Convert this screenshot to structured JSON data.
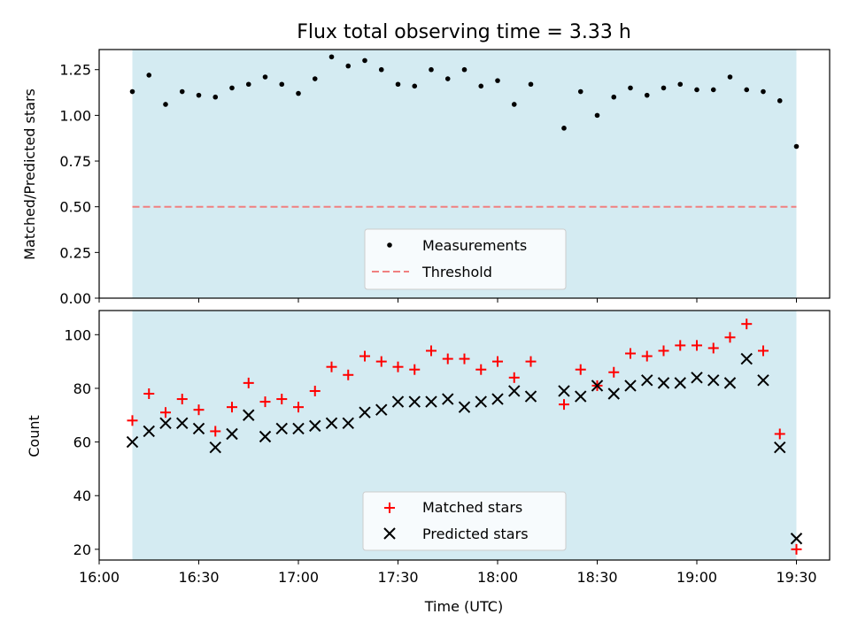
{
  "chart_data": [
    {
      "type": "scatter",
      "title": "Flux total observing time = 3.33 h",
      "ylabel": "Matched/Predicted stars",
      "xlabel": "",
      "ylim": [
        0,
        1.36
      ],
      "xlim": [
        "16:00",
        "19:40"
      ],
      "yticks": [
        "0.00",
        "0.25",
        "0.50",
        "0.75",
        "1.00",
        "1.25"
      ],
      "shaded_range": [
        "16:10",
        "19:30"
      ],
      "threshold": 0.5,
      "legend": [
        "Measurements",
        "Threshold"
      ],
      "series": [
        {
          "name": "Measurements",
          "x": [
            "16:10",
            "16:15",
            "16:20",
            "16:25",
            "16:30",
            "16:35",
            "16:40",
            "16:45",
            "16:50",
            "16:55",
            "17:00",
            "17:05",
            "17:10",
            "17:15",
            "17:20",
            "17:25",
            "17:30",
            "17:35",
            "17:40",
            "17:45",
            "17:50",
            "17:55",
            "18:00",
            "18:05",
            "18:10",
            "18:20",
            "18:25",
            "18:30",
            "18:35",
            "18:40",
            "18:45",
            "18:50",
            "18:55",
            "19:00",
            "19:05",
            "19:10",
            "19:15",
            "19:20",
            "19:25",
            "19:30"
          ],
          "values": [
            1.13,
            1.22,
            1.06,
            1.13,
            1.11,
            1.1,
            1.15,
            1.17,
            1.21,
            1.17,
            1.12,
            1.2,
            1.32,
            1.27,
            1.3,
            1.25,
            1.17,
            1.16,
            1.25,
            1.2,
            1.25,
            1.16,
            1.19,
            1.06,
            1.17,
            0.93,
            1.13,
            1.0,
            1.1,
            1.15,
            1.11,
            1.15,
            1.17,
            1.14,
            1.14,
            1.21,
            1.14,
            1.13,
            1.08,
            0.83
          ]
        }
      ]
    },
    {
      "type": "scatter",
      "title": "",
      "ylabel": "Count",
      "xlabel": "Time (UTC)",
      "ylim": [
        16,
        109
      ],
      "yticks": [
        "20",
        "40",
        "60",
        "80",
        "100"
      ],
      "xticks": [
        "16:00",
        "16:30",
        "17:00",
        "17:30",
        "18:00",
        "18:30",
        "19:00",
        "19:30"
      ],
      "legend": [
        "Matched stars",
        "Predicted stars"
      ],
      "series": [
        {
          "name": "Matched stars",
          "x": [
            "16:10",
            "16:15",
            "16:20",
            "16:25",
            "16:30",
            "16:35",
            "16:40",
            "16:45",
            "16:50",
            "16:55",
            "17:00",
            "17:05",
            "17:10",
            "17:15",
            "17:20",
            "17:25",
            "17:30",
            "17:35",
            "17:40",
            "17:45",
            "17:50",
            "17:55",
            "18:00",
            "18:05",
            "18:10",
            "18:20",
            "18:25",
            "18:30",
            "18:35",
            "18:40",
            "18:45",
            "18:50",
            "18:55",
            "19:00",
            "19:05",
            "19:10",
            "19:15",
            "19:20",
            "19:25",
            "19:30"
          ],
          "values": [
            68,
            78,
            71,
            76,
            72,
            64,
            73,
            82,
            75,
            76,
            73,
            79,
            88,
            85,
            92,
            90,
            88,
            87,
            94,
            91,
            91,
            87,
            90,
            84,
            90,
            74,
            87,
            81,
            86,
            93,
            92,
            94,
            96,
            96,
            95,
            99,
            104,
            94,
            63,
            20
          ]
        },
        {
          "name": "Predicted stars",
          "x": [
            "16:10",
            "16:15",
            "16:20",
            "16:25",
            "16:30",
            "16:35",
            "16:40",
            "16:45",
            "16:50",
            "16:55",
            "17:00",
            "17:05",
            "17:10",
            "17:15",
            "17:20",
            "17:25",
            "17:30",
            "17:35",
            "17:40",
            "17:45",
            "17:50",
            "17:55",
            "18:00",
            "18:05",
            "18:10",
            "18:20",
            "18:25",
            "18:30",
            "18:35",
            "18:40",
            "18:45",
            "18:50",
            "18:55",
            "19:00",
            "19:05",
            "19:10",
            "19:15",
            "19:20",
            "19:25",
            "19:30"
          ],
          "values": [
            60,
            64,
            67,
            67,
            65,
            58,
            63,
            70,
            62,
            65,
            65,
            66,
            67,
            67,
            71,
            72,
            75,
            75,
            75,
            76,
            73,
            75,
            76,
            79,
            77,
            79,
            77,
            81,
            78,
            81,
            83,
            82,
            82,
            84,
            83,
            82,
            91,
            83,
            58,
            24
          ]
        }
      ]
    }
  ],
  "colors": {
    "shade": "#d4ebf2",
    "threshold": "#f08080",
    "measure": "#000000",
    "matched": "#ff0000",
    "predicted": "#000000"
  }
}
